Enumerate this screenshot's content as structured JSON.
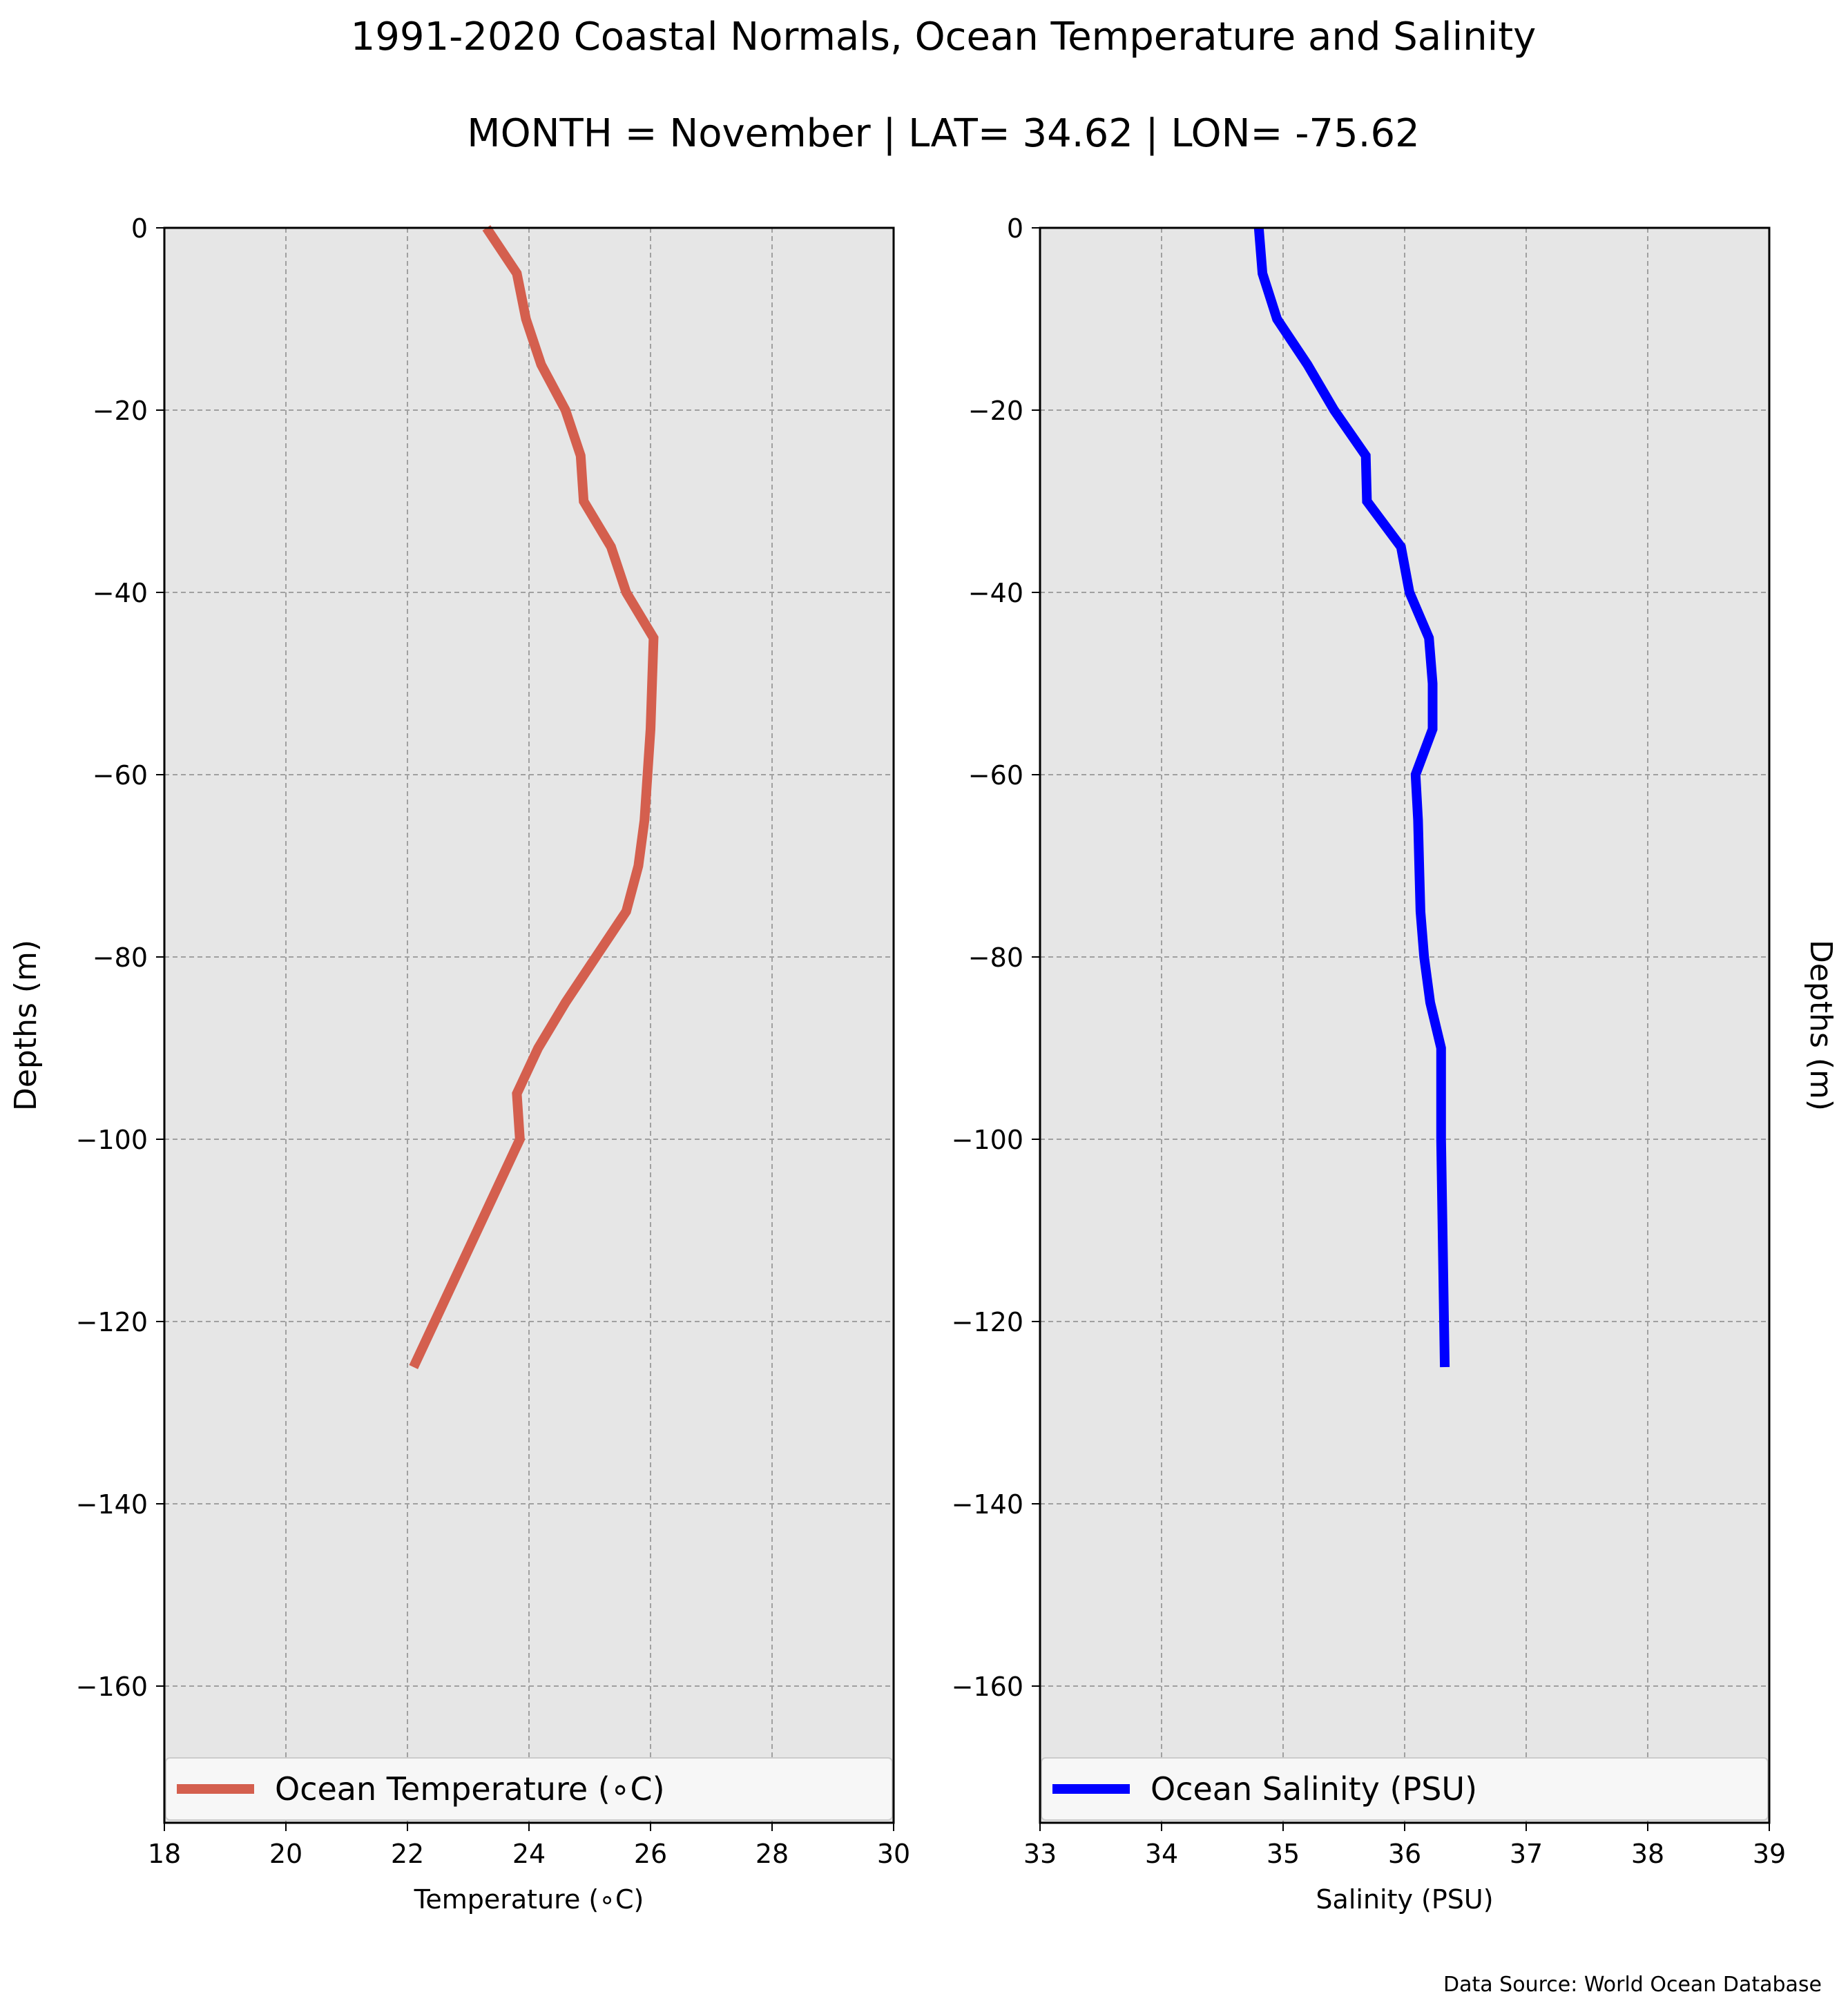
{
  "figure": {
    "title": "1991-2020 Coastal Normals, Ocean Temperature and Salinity",
    "subtitle": "MONTH = November | LAT= 34.62 | LON= -75.62",
    "source_note": "Data Source: World Ocean Database"
  },
  "chart_data": [
    {
      "type": "line",
      "xlabel": "Temperature ($^∘$C)",
      "xlabel_display": "Temperature (∘C)",
      "ylabel": "Depths (m)",
      "xlim": [
        18,
        30
      ],
      "ylim": [
        -175,
        0
      ],
      "xticks": [
        18,
        20,
        22,
        24,
        26,
        28,
        30
      ],
      "yticks": [
        0,
        -20,
        -40,
        -60,
        -80,
        -100,
        -120,
        -140,
        -160
      ],
      "ytick_labels": [
        "0",
        "−20",
        "−40",
        "−60",
        "−80",
        "−100",
        "−120",
        "−140",
        "−160"
      ],
      "grid": true,
      "legend_position": "bottom",
      "series": [
        {
          "name": "Ocean Temperature (∘C)",
          "color": "#d45f4e",
          "x": [
            23.3,
            23.8,
            23.95,
            24.2,
            24.6,
            24.85,
            24.9,
            25.35,
            25.6,
            26.05,
            26.0,
            25.95,
            25.9,
            25.8,
            25.6,
            25.1,
            24.6,
            24.15,
            23.8,
            23.85,
            22.1
          ],
          "y": [
            0,
            -5,
            -10,
            -15,
            -20,
            -25,
            -30,
            -35,
            -40,
            -45,
            -55,
            -60,
            -65,
            -70,
            -75,
            -80,
            -85,
            -90,
            -95,
            -100,
            -125
          ]
        }
      ]
    },
    {
      "type": "line",
      "xlabel": "Salinity (PSU)",
      "ylabel": "Depths (m)",
      "xlim": [
        33,
        39
      ],
      "ylim": [
        -175,
        0
      ],
      "xticks": [
        33,
        34,
        35,
        36,
        37,
        38,
        39
      ],
      "yticks": [
        0,
        -20,
        -40,
        -60,
        -80,
        -100,
        -120,
        -140,
        -160
      ],
      "ytick_labels": [
        "0",
        "−20",
        "−40",
        "−60",
        "−80",
        "−100",
        "−120",
        "−140",
        "−160"
      ],
      "grid": true,
      "legend_position": "bottom",
      "series": [
        {
          "name": "Ocean Salinity (PSU)",
          "color": "#0000ff",
          "x": [
            34.8,
            34.83,
            34.95,
            35.2,
            35.42,
            35.68,
            35.69,
            35.97,
            36.04,
            36.2,
            36.23,
            36.23,
            36.09,
            36.11,
            36.12,
            36.13,
            36.16,
            36.21,
            36.3,
            36.3,
            36.33
          ],
          "y": [
            0,
            -5,
            -10,
            -15,
            -20,
            -25,
            -30,
            -35,
            -40,
            -45,
            -50,
            -55,
            -60,
            -65,
            -70,
            -75,
            -80,
            -85,
            -90,
            -100,
            -125
          ]
        }
      ]
    }
  ],
  "colors": {
    "plot_background": "#e6e6e6",
    "grid": "#a0a0a0",
    "legend_background": "#f7f7f7"
  }
}
